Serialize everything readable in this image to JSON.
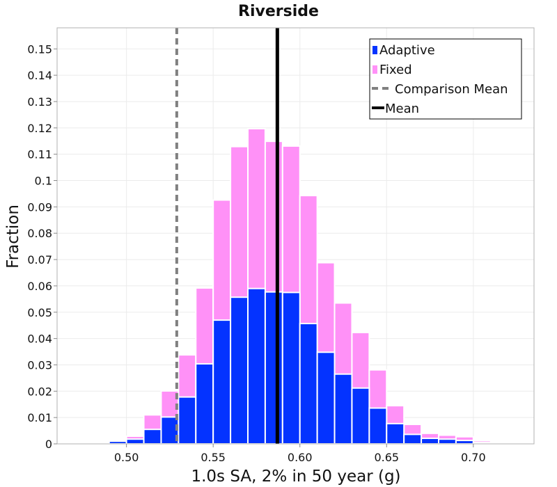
{
  "chart_data": {
    "type": "bar",
    "title": "Riverside",
    "xlabel": "1.0s SA, 2% in 50 year (g)",
    "ylabel": "Fraction",
    "xlim": [
      0.46,
      0.735
    ],
    "ylim": [
      0,
      0.158
    ],
    "grid": true,
    "legend_position": "top-right",
    "bin_width": 0.01,
    "x_ticks": [
      0.5,
      0.55,
      0.6,
      0.65,
      0.7
    ],
    "x_tick_labels": [
      "0.50",
      "0.55",
      "0.60",
      "0.65",
      "0.70"
    ],
    "y_ticks": [
      0,
      0.01,
      0.02,
      0.03,
      0.04,
      0.05,
      0.06,
      0.07,
      0.08,
      0.09,
      0.1,
      0.11,
      0.12,
      0.13,
      0.14,
      0.15
    ],
    "y_tick_labels": [
      "0",
      "0.01",
      "0.02",
      "0.03",
      "0.04",
      "0.05",
      "0.06",
      "0.07",
      "0.08",
      "0.09",
      "0.1",
      "0.11",
      "0.12",
      "0.13",
      "0.14",
      "0.15"
    ],
    "bin_centers": [
      0.475,
      0.485,
      0.495,
      0.505,
      0.515,
      0.525,
      0.535,
      0.545,
      0.555,
      0.565,
      0.575,
      0.585,
      0.595,
      0.605,
      0.615,
      0.625,
      0.635,
      0.645,
      0.655,
      0.665,
      0.675,
      0.685,
      0.695,
      0.705,
      0.715
    ],
    "series": [
      {
        "name": "Adaptive",
        "color": "#0433ff",
        "values": [
          0.0002,
          0.0005,
          0.001,
          0.0018,
          0.0055,
          0.0102,
          0.0178,
          0.0304,
          0.047,
          0.0557,
          0.059,
          0.0577,
          0.0575,
          0.0457,
          0.0348,
          0.0265,
          0.0212,
          0.0136,
          0.0077,
          0.0036,
          0.0021,
          0.0018,
          0.0013,
          0.0005,
          0.0002
        ]
      },
      {
        "name": "Fixed",
        "color": "#ff91f7",
        "values": [
          0.0003,
          0.0006,
          0.0013,
          0.0029,
          0.011,
          0.0201,
          0.0338,
          0.0592,
          0.0926,
          0.1129,
          0.1197,
          0.1149,
          0.1131,
          0.0943,
          0.0688,
          0.0535,
          0.0423,
          0.0281,
          0.0145,
          0.0074,
          0.004,
          0.0033,
          0.0027,
          0.0012,
          0.0004
        ]
      }
    ],
    "lines": [
      {
        "name": "Comparison Mean",
        "x": 0.529,
        "color": "#808080",
        "style": "dashed"
      },
      {
        "name": "Mean",
        "x": 0.587,
        "color": "#000000",
        "style": "solid"
      }
    ]
  }
}
